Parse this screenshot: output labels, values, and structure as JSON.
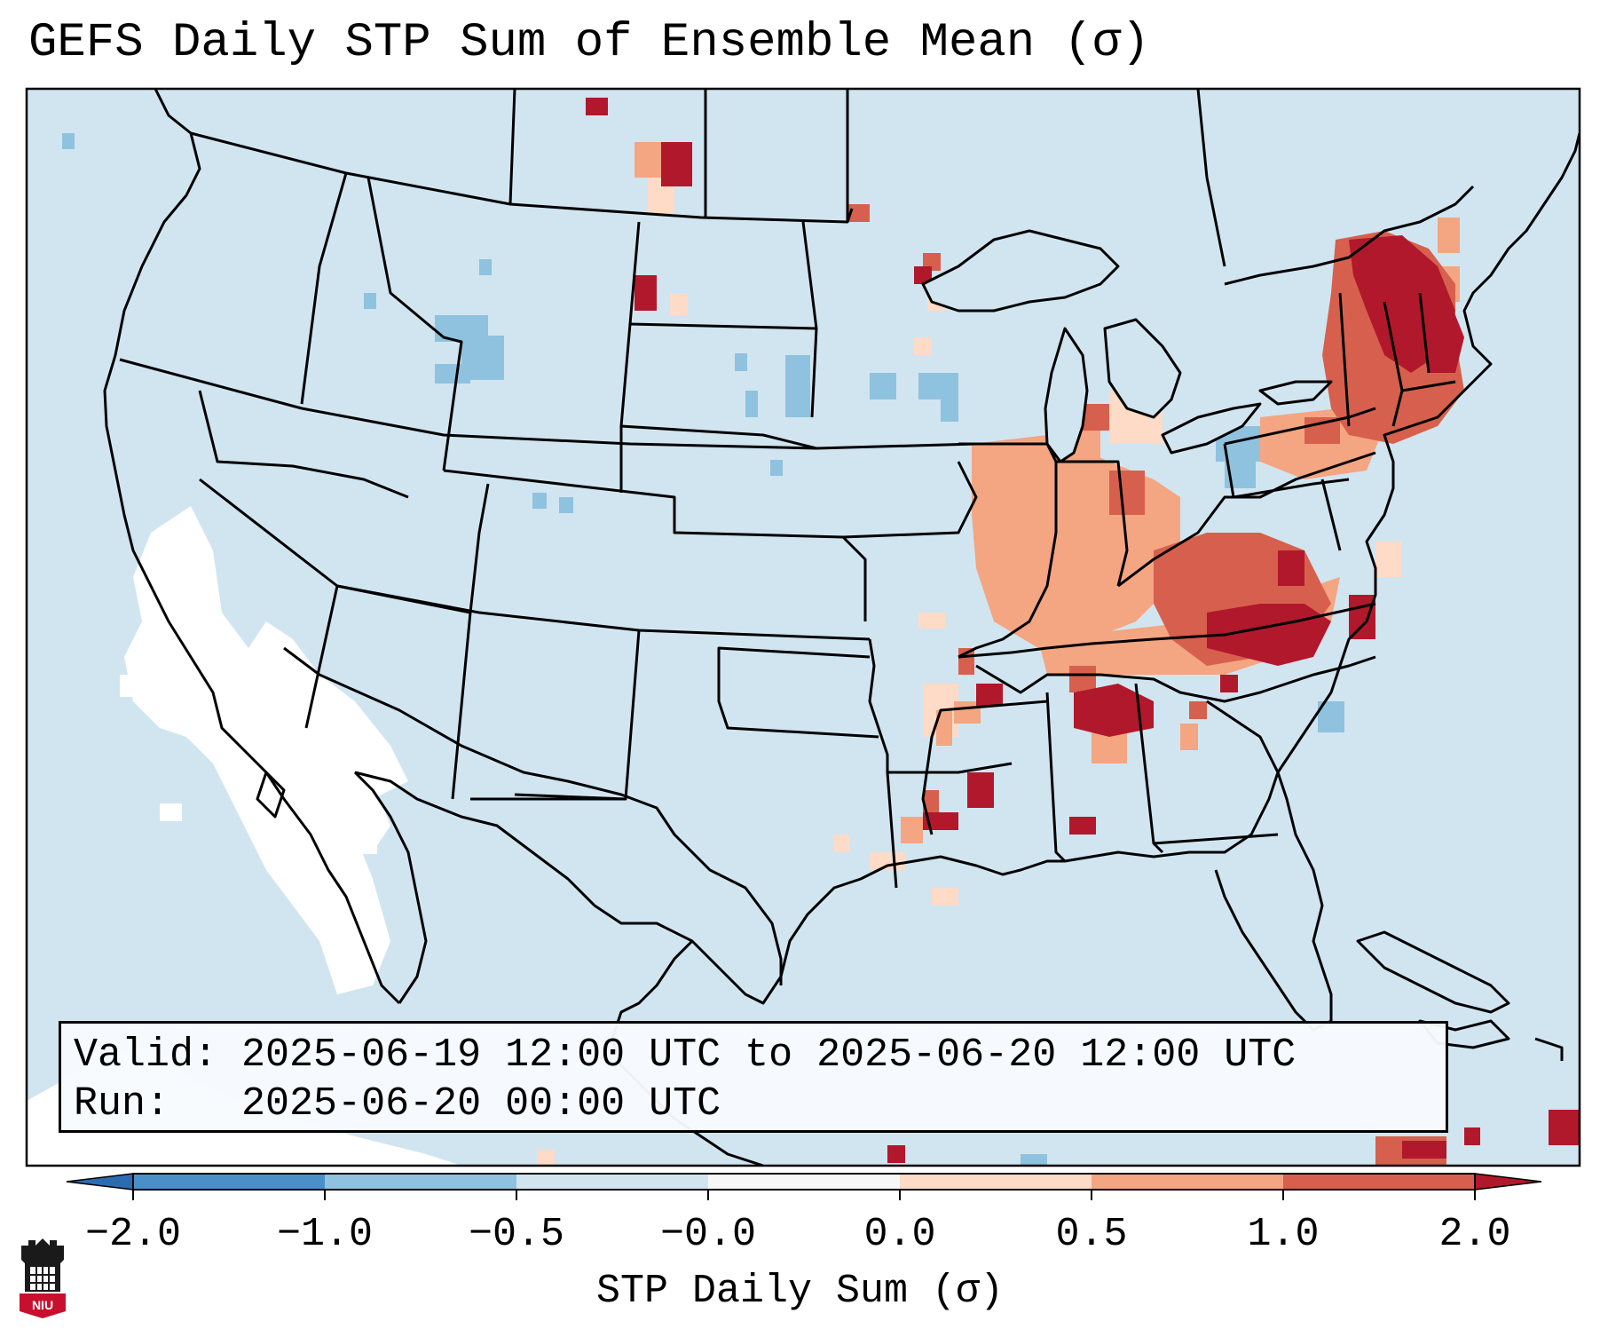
{
  "title": "GEFS Daily STP Sum of Ensemble Mean (σ)",
  "info": {
    "valid_label": "Valid:",
    "valid_value": "2025-06-19 12:00 UTC to 2025-06-20 12:00 UTC",
    "run_label": "Run:",
    "run_value": "2025-06-20 00:00 UTC"
  },
  "colorbar": {
    "label": "STP Daily Sum (σ)",
    "ticks": [
      "−2.0",
      "−1.0",
      "−0.5",
      "−0.0",
      "0.0",
      "0.5",
      "1.0",
      "2.0"
    ],
    "colors": {
      "below": "#2b6cb0",
      "neg2_neg1": "#4a90c8",
      "neg1_neg05": "#8fc2de",
      "neg05_0": "#d1e5f0",
      "zero": "#f7f7f7",
      "p0_p05": "#fddbc7",
      "p05_p1": "#f4a582",
      "p1_p2": "#d6604d",
      "above": "#b2182b"
    }
  },
  "logo": {
    "text": "NIU"
  },
  "colors": {
    "map_background": "#d1e5f0",
    "no_signal": "#ffffff",
    "border": "#000000"
  }
}
